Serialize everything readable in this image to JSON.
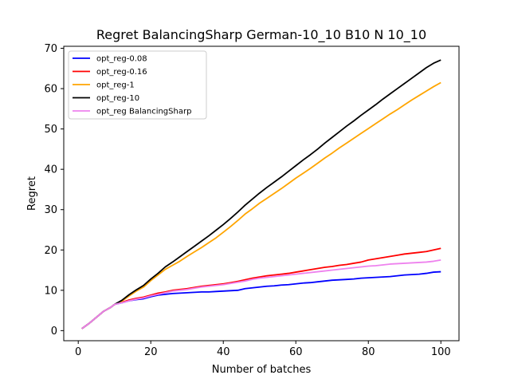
{
  "chart_data": {
    "type": "line",
    "title": "Regret BalancingSharp German-10_10 B10 N 10_10",
    "xlabel": "Number of batches",
    "ylabel": "Regret",
    "xlim": [
      -4,
      105
    ],
    "ylim": [
      -2.5,
      70.5
    ],
    "xticks": [
      0,
      20,
      40,
      60,
      80,
      100
    ],
    "yticks": [
      0,
      10,
      20,
      30,
      40,
      50,
      60,
      70
    ],
    "grid": false,
    "legend_position": "top-left",
    "series": [
      {
        "name": "opt_reg-0.08",
        "color": "#0000ff",
        "x": [
          1,
          3,
          5,
          7,
          9,
          10,
          12,
          14,
          16,
          18,
          20,
          22,
          24,
          26,
          28,
          30,
          32,
          34,
          36,
          38,
          40,
          42,
          44,
          46,
          48,
          50,
          52,
          54,
          56,
          58,
          60,
          62,
          64,
          66,
          68,
          70,
          72,
          74,
          76,
          78,
          80,
          82,
          84,
          86,
          88,
          90,
          92,
          94,
          96,
          98,
          100
        ],
        "y": [
          0.5,
          1.8,
          3.3,
          4.8,
          5.8,
          6.5,
          6.9,
          7.4,
          7.7,
          7.9,
          8.4,
          8.8,
          9.0,
          9.2,
          9.3,
          9.4,
          9.5,
          9.6,
          9.6,
          9.7,
          9.8,
          9.9,
          10.0,
          10.4,
          10.6,
          10.8,
          11.0,
          11.1,
          11.3,
          11.4,
          11.6,
          11.8,
          11.9,
          12.1,
          12.3,
          12.5,
          12.6,
          12.7,
          12.8,
          13.0,
          13.1,
          13.2,
          13.3,
          13.4,
          13.6,
          13.8,
          13.9,
          14.0,
          14.2,
          14.5,
          14.6
        ]
      },
      {
        "name": "opt_reg-0.16",
        "color": "#ff0000",
        "x": [
          1,
          3,
          5,
          7,
          9,
          10,
          12,
          14,
          16,
          18,
          20,
          22,
          24,
          26,
          28,
          30,
          32,
          34,
          36,
          38,
          40,
          42,
          44,
          46,
          48,
          50,
          52,
          54,
          56,
          58,
          60,
          62,
          64,
          66,
          68,
          70,
          72,
          74,
          76,
          78,
          80,
          82,
          84,
          86,
          88,
          90,
          92,
          94,
          96,
          98,
          100
        ],
        "y": [
          0.5,
          1.8,
          3.3,
          4.8,
          5.8,
          6.5,
          7.0,
          7.6,
          8.0,
          8.3,
          8.8,
          9.3,
          9.6,
          10.0,
          10.2,
          10.4,
          10.7,
          11.0,
          11.2,
          11.4,
          11.6,
          11.9,
          12.2,
          12.6,
          13.0,
          13.3,
          13.6,
          13.8,
          14.0,
          14.2,
          14.5,
          14.8,
          15.1,
          15.4,
          15.7,
          15.9,
          16.2,
          16.4,
          16.7,
          17.0,
          17.5,
          17.8,
          18.1,
          18.4,
          18.7,
          19.0,
          19.2,
          19.4,
          19.6,
          20.0,
          20.4
        ]
      },
      {
        "name": "opt_reg-1",
        "color": "#ffa500",
        "x": [
          1,
          3,
          5,
          7,
          9,
          10,
          12,
          14,
          16,
          18,
          20,
          22,
          24,
          26,
          28,
          30,
          32,
          34,
          36,
          38,
          40,
          42,
          44,
          46,
          48,
          50,
          52,
          54,
          56,
          58,
          60,
          62,
          64,
          66,
          68,
          70,
          72,
          74,
          76,
          78,
          80,
          82,
          84,
          86,
          88,
          90,
          92,
          94,
          96,
          98,
          100
        ],
        "y": [
          0.5,
          1.8,
          3.3,
          4.8,
          5.8,
          6.5,
          7.3,
          8.6,
          9.8,
          10.8,
          12.4,
          13.8,
          15.2,
          16.2,
          17.2,
          18.4,
          19.5,
          20.6,
          21.8,
          23.0,
          24.4,
          25.8,
          27.3,
          28.9,
          30.2,
          31.6,
          32.8,
          34.0,
          35.2,
          36.5,
          37.8,
          39.0,
          40.2,
          41.5,
          42.8,
          44.0,
          45.3,
          46.5,
          47.7,
          48.9,
          50.1,
          51.3,
          52.5,
          53.7,
          54.8,
          56.0,
          57.2,
          58.3,
          59.4,
          60.5,
          61.5
        ]
      },
      {
        "name": "opt_reg-10",
        "color": "#000000",
        "x": [
          1,
          3,
          5,
          7,
          9,
          10,
          12,
          14,
          16,
          18,
          20,
          22,
          24,
          26,
          28,
          30,
          32,
          34,
          36,
          38,
          40,
          42,
          44,
          46,
          48,
          50,
          52,
          54,
          56,
          58,
          60,
          62,
          64,
          66,
          68,
          70,
          72,
          74,
          76,
          78,
          80,
          82,
          84,
          86,
          88,
          90,
          92,
          94,
          96,
          98,
          100
        ],
        "y": [
          0.5,
          1.8,
          3.3,
          4.8,
          5.8,
          6.5,
          7.5,
          8.9,
          10.1,
          11.2,
          12.8,
          14.2,
          15.8,
          17.0,
          18.3,
          19.6,
          20.9,
          22.2,
          23.5,
          24.9,
          26.3,
          27.8,
          29.4,
          31.1,
          32.6,
          34.1,
          35.5,
          36.8,
          38.1,
          39.5,
          40.9,
          42.3,
          43.6,
          45.0,
          46.5,
          47.9,
          49.3,
          50.7,
          52.0,
          53.4,
          54.7,
          56.0,
          57.4,
          58.7,
          60.0,
          61.3,
          62.6,
          63.9,
          65.2,
          66.3,
          67.1
        ]
      },
      {
        "name": "opt_reg BalancingSharp",
        "color": "#ee82ee",
        "x": [
          1,
          3,
          5,
          7,
          9,
          10,
          12,
          14,
          16,
          18,
          20,
          22,
          24,
          26,
          28,
          30,
          32,
          34,
          36,
          38,
          40,
          42,
          44,
          46,
          48,
          50,
          52,
          54,
          56,
          58,
          60,
          62,
          64,
          66,
          68,
          70,
          72,
          74,
          76,
          78,
          80,
          82,
          84,
          86,
          88,
          90,
          92,
          94,
          96,
          98,
          100
        ],
        "y": [
          0.5,
          1.8,
          3.3,
          4.8,
          5.8,
          6.5,
          6.9,
          7.4,
          7.8,
          8.1,
          8.6,
          9.0,
          9.4,
          9.8,
          10.0,
          10.2,
          10.5,
          10.8,
          11.0,
          11.2,
          11.4,
          11.7,
          12.0,
          12.3,
          12.7,
          13.0,
          13.2,
          13.4,
          13.6,
          13.8,
          14.0,
          14.2,
          14.4,
          14.6,
          14.8,
          15.0,
          15.2,
          15.4,
          15.6,
          15.8,
          16.0,
          16.1,
          16.3,
          16.5,
          16.6,
          16.7,
          16.8,
          16.9,
          17.0,
          17.2,
          17.5
        ]
      }
    ]
  }
}
